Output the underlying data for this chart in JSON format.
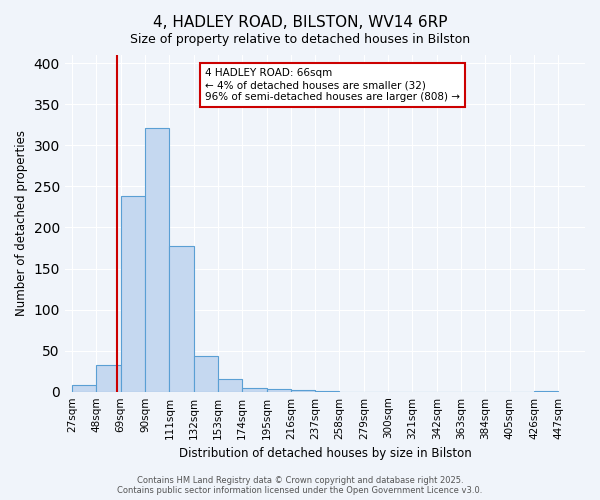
{
  "title": "4, HADLEY ROAD, BILSTON, WV14 6RP",
  "subtitle": "Size of property relative to detached houses in Bilston",
  "xlabel": "Distribution of detached houses by size in Bilston",
  "ylabel": "Number of detached properties",
  "bar_values": [
    8,
    32,
    238,
    321,
    178,
    44,
    16,
    5,
    3,
    2,
    1,
    0,
    0,
    0,
    0,
    0,
    0,
    0,
    0,
    1
  ],
  "bin_labels": [
    "27sqm",
    "48sqm",
    "69sqm",
    "90sqm",
    "111sqm",
    "132sqm",
    "153sqm",
    "174sqm",
    "195sqm",
    "216sqm",
    "237sqm",
    "258sqm",
    "279sqm",
    "300sqm",
    "321sqm",
    "342sqm",
    "363sqm",
    "384sqm",
    "405sqm",
    "426sqm",
    "447sqm"
  ],
  "bar_color": "#c5d8f0",
  "bar_edge_color": "#5a9fd4",
  "ylim": [
    0,
    410
  ],
  "yticks": [
    0,
    50,
    100,
    150,
    200,
    250,
    300,
    350,
    400
  ],
  "property_line_x": 66,
  "bin_edges": [
    27,
    48,
    69,
    90,
    111,
    132,
    153,
    174,
    195,
    216,
    237,
    258,
    279,
    300,
    321,
    342,
    363,
    384,
    405,
    426,
    447
  ],
  "annotation_title": "4 HADLEY ROAD: 66sqm",
  "annotation_line1": "← 4% of detached houses are smaller (32)",
  "annotation_line2": "96% of semi-detached houses are larger (808) →",
  "red_line_color": "#cc0000",
  "annotation_box_color": "#ffffff",
  "annotation_box_edge": "#cc0000",
  "background_color": "#f0f4fa",
  "grid_color": "#ffffff",
  "footer1": "Contains HM Land Registry data © Crown copyright and database right 2025.",
  "footer2": "Contains public sector information licensed under the Open Government Licence v3.0."
}
